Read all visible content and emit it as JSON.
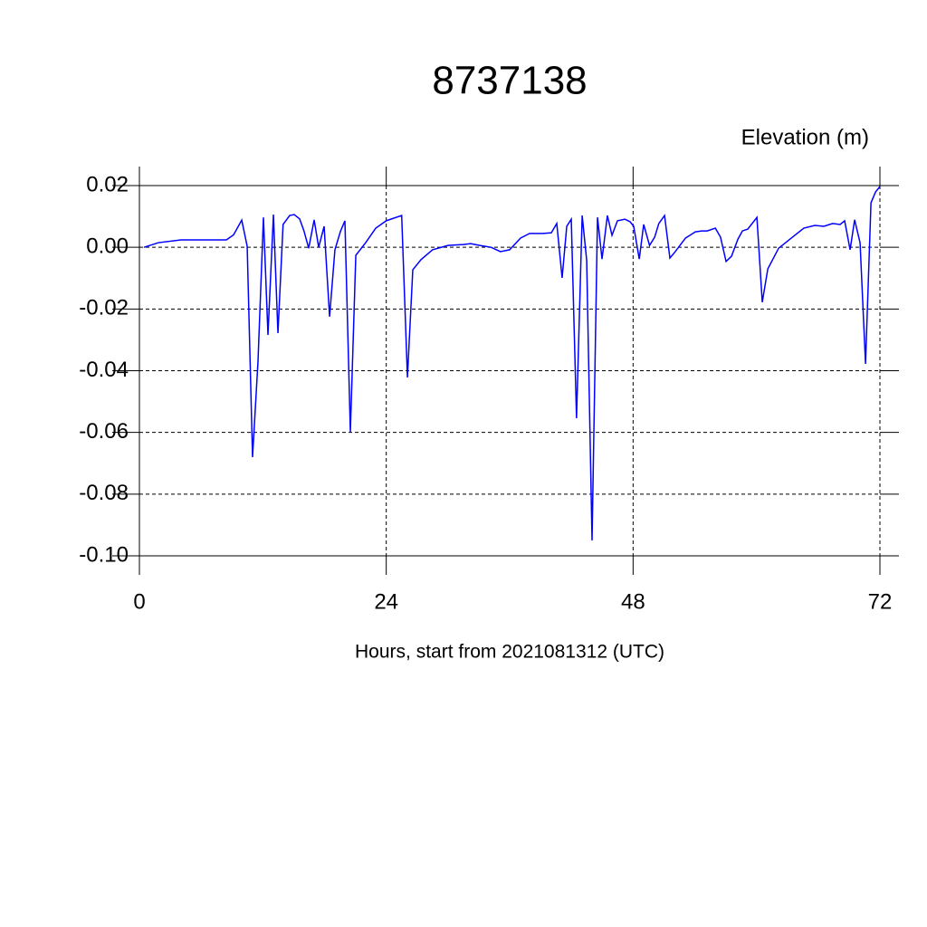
{
  "chart_data": {
    "type": "line",
    "title": "8737138",
    "ylabel": "Elevation (m)",
    "xlabel": "Hours, start from 2021081312 (UTC)",
    "x": [
      0.44,
      1.85,
      4.05,
      6.25,
      8.45,
      9.15,
      9.95,
      10.48,
      11.0,
      11.53,
      12.06,
      12.5,
      13.03,
      13.47,
      13.97,
      14.61,
      15.05,
      15.58,
      16.0,
      16.46,
      16.99,
      17.43,
      17.96,
      18.49,
      19.01,
      19.54,
      19.98,
      20.51,
      21.04,
      22.0,
      22.98,
      24.0,
      25.5,
      26.06,
      26.58,
      27.38,
      28.5,
      30.0,
      31.5,
      32.2,
      33.1,
      34.2,
      35.1,
      36.0,
      37.06,
      37.94,
      39.26,
      40.05,
      40.58,
      41.1,
      41.55,
      41.99,
      42.5,
      43.05,
      43.49,
      44.01,
      44.54,
      44.98,
      45.5,
      45.95,
      46.48,
      47.2,
      47.7,
      48.06,
      48.6,
      49.03,
      49.6,
      50.1,
      50.5,
      51.06,
      51.58,
      52.1,
      53.1,
      54.05,
      54.66,
      55.2,
      56.0,
      56.5,
      57.04,
      57.57,
      58.2,
      58.63,
      59.15,
      60.04,
      60.56,
      61.1,
      62.15,
      63.5,
      64.6,
      65.67,
      66.55,
      67.4,
      68.13,
      68.57,
      69.1,
      69.54,
      70.07,
      70.6,
      71.13,
      71.57,
      72.0
    ],
    "series": [
      {
        "color": "#0000ff",
        "values": [
          0.0,
          0.0015,
          0.0024,
          0.0024,
          0.0024,
          0.004,
          0.0088,
          0.0003,
          -0.068,
          -0.037,
          0.0097,
          -0.0284,
          0.0106,
          -0.0278,
          0.0074,
          0.0103,
          0.0106,
          0.0092,
          0.0053,
          -0.0003,
          0.0089,
          0.0,
          0.0068,
          -0.0225,
          -0.0008,
          0.0051,
          0.0086,
          -0.0598,
          -0.0026,
          0.0015,
          0.0062,
          0.0086,
          0.0103,
          -0.0422,
          -0.0073,
          -0.004,
          -0.0008,
          0.0006,
          0.0009,
          0.0012,
          0.0006,
          0.0,
          -0.0014,
          -0.0008,
          0.003,
          0.0045,
          0.0045,
          0.0047,
          0.0077,
          -0.0099,
          0.0068,
          0.0091,
          -0.0554,
          0.0103,
          -0.0043,
          -0.095,
          0.0097,
          -0.0038,
          0.0103,
          0.0039,
          0.0086,
          0.0091,
          0.0083,
          0.0068,
          -0.0038,
          0.0074,
          0.0006,
          0.0033,
          0.0077,
          0.0103,
          -0.0035,
          -0.0014,
          0.003,
          0.005,
          0.0053,
          0.0053,
          0.0062,
          0.0033,
          -0.0046,
          -0.0029,
          0.0027,
          0.0053,
          0.0059,
          0.0097,
          -0.0178,
          -0.007,
          -0.0003,
          0.0033,
          0.0062,
          0.0071,
          0.0068,
          0.0077,
          0.0074,
          0.0086,
          -0.0008,
          0.0089,
          0.0015,
          -0.0378,
          0.0144,
          0.0179,
          0.0197
        ]
      }
    ],
    "xlim": [
      0,
      72
    ],
    "xticks": [
      0,
      24,
      48,
      72
    ],
    "ylim": [
      -0.1,
      0.02
    ],
    "yticks": [
      {
        "value": -0.1,
        "label": "-0.10"
      },
      {
        "value": -0.08,
        "label": "-0.08"
      },
      {
        "value": -0.06,
        "label": "-0.06"
      },
      {
        "value": -0.04,
        "label": "-0.04"
      },
      {
        "value": -0.02,
        "label": "-0.02"
      },
      {
        "value": 0,
        "label": "0.00"
      },
      {
        "value": 0.02,
        "label": "0.02"
      }
    ],
    "grid": true
  }
}
